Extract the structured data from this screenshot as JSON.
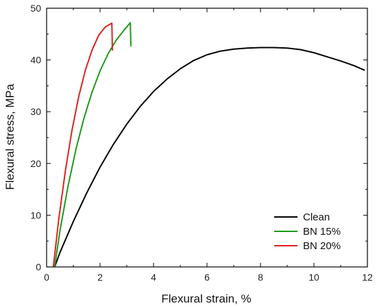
{
  "chart_data": {
    "type": "line",
    "xlabel": "Flexural strain, %",
    "ylabel": "Flexural stress, MPa",
    "xlim": [
      0,
      12
    ],
    "ylim": [
      0,
      50
    ],
    "x_ticks": [
      "0",
      "2",
      "4",
      "6",
      "8",
      "10",
      "12"
    ],
    "y_ticks": [
      "0",
      "10",
      "20",
      "30",
      "40",
      "50"
    ],
    "grid": false,
    "legend_position": "bottom-right",
    "series": [
      {
        "name": "Clean",
        "color": "#000000",
        "x": [
          0.3,
          0.5,
          1.0,
          1.5,
          2.0,
          2.5,
          3.0,
          3.5,
          4.0,
          4.5,
          5.0,
          5.5,
          6.0,
          6.5,
          7.0,
          7.5,
          8.0,
          8.5,
          9.0,
          9.5,
          10.0,
          10.5,
          11.0,
          11.5,
          11.9
        ],
        "y": [
          0,
          2.8,
          8.8,
          14.3,
          19.3,
          23.7,
          27.6,
          31.0,
          33.9,
          36.3,
          38.3,
          39.9,
          41.0,
          41.7,
          42.1,
          42.3,
          42.4,
          42.4,
          42.3,
          42.0,
          41.4,
          40.6,
          39.8,
          38.9,
          38.0
        ]
      },
      {
        "name": "BN 15%",
        "color": "#1a9a1a",
        "x": [
          0.3,
          0.5,
          0.8,
          1.1,
          1.4,
          1.7,
          2.0,
          2.3,
          2.6,
          2.9,
          3.13,
          3.14,
          3.15
        ],
        "y": [
          0,
          7.0,
          15.6,
          22.8,
          28.8,
          33.8,
          37.9,
          41.2,
          43.8,
          45.8,
          47.2,
          45.0,
          42.6
        ]
      },
      {
        "name": "BN 20%",
        "color": "#e02020",
        "x": [
          0.25,
          0.45,
          0.7,
          0.95,
          1.2,
          1.45,
          1.7,
          1.95,
          2.2,
          2.44,
          2.45,
          2.46
        ],
        "y": [
          0,
          9.0,
          18.5,
          26.4,
          32.9,
          38.0,
          41.9,
          44.8,
          46.4,
          47.1,
          44.5,
          41.8
        ]
      }
    ]
  }
}
